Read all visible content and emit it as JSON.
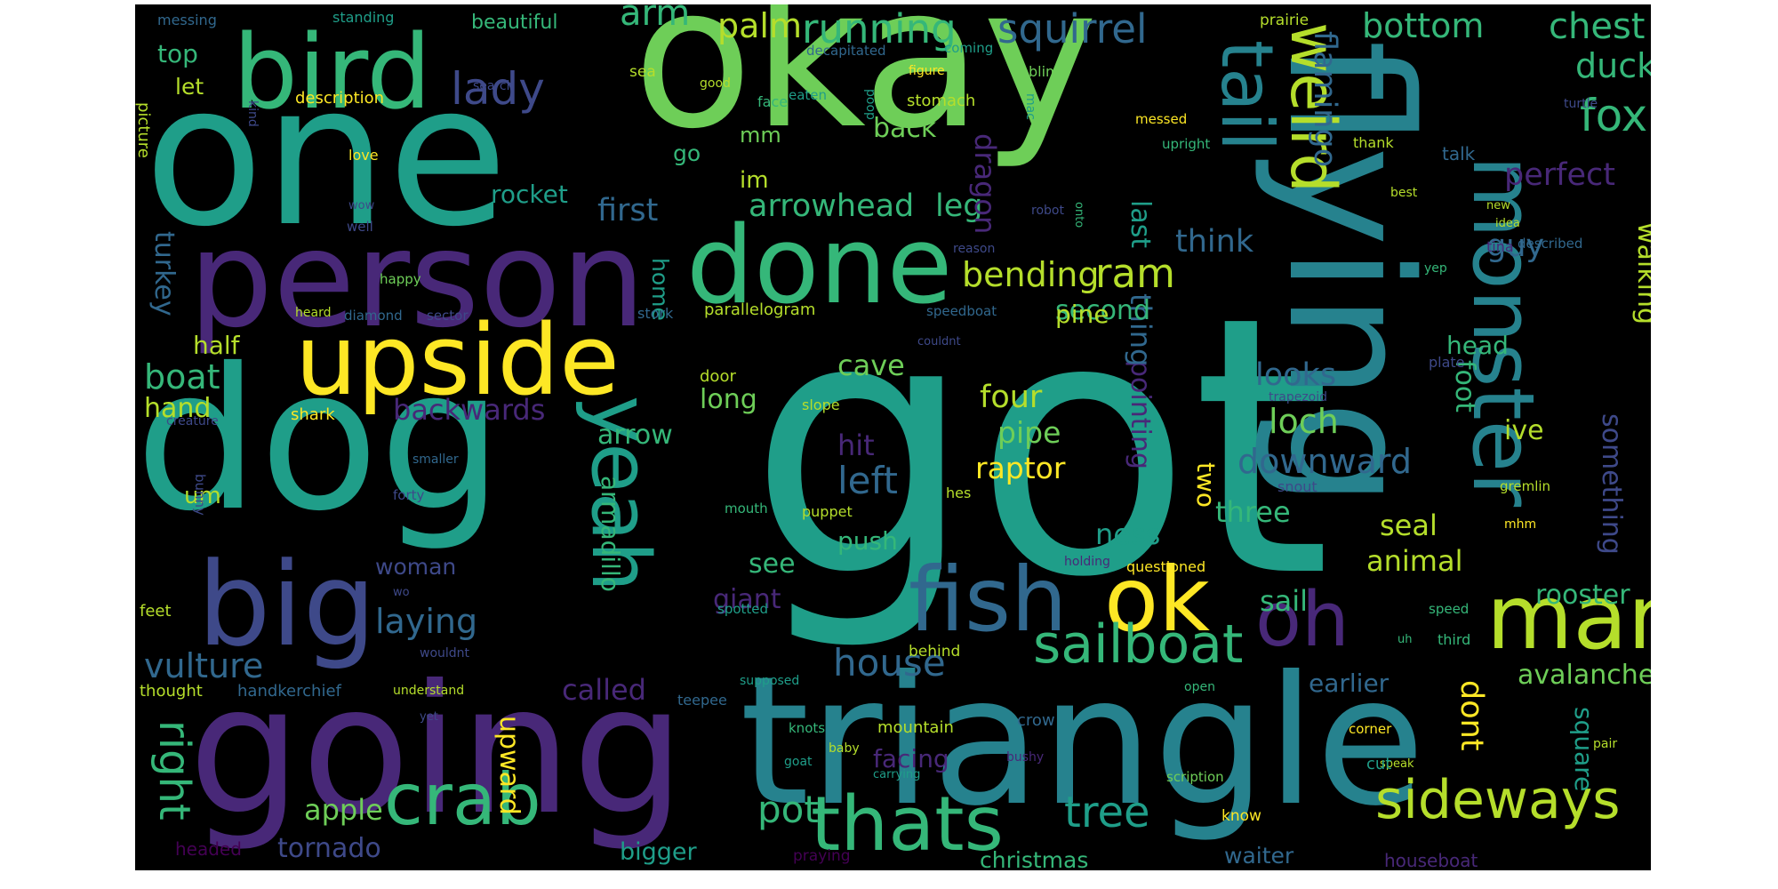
{
  "palette": {
    "yellow": "#fde725",
    "lime": "#b5de2b",
    "green": "#6ece58",
    "mint": "#35b779",
    "teal": "#1f9e89",
    "cyan": "#26828e",
    "blue": "#31688e",
    "indigo": "#3e4989",
    "purple": "#482878",
    "violet": "#440154"
  },
  "words": {
    "got": "got",
    "okay": "okay",
    "one": "one",
    "dog": "dog",
    "going": "going",
    "triangle": "triangle",
    "person": "person",
    "flying": "flying",
    "upside": "upside",
    "bird": "bird",
    "big": "big",
    "done": "done",
    "fish": "fish",
    "ok": "ok",
    "man": "man",
    "yeah": "yeah",
    "monster": "monster",
    "tail": "tail",
    "weird": "weird",
    "oh": "oh",
    "thats": "thats",
    "crab": "crab",
    "sailboat": "sailboat",
    "sideways": "sideways",
    "lady": "lady",
    "running": "running",
    "squirrel": "squirrel",
    "arm": "arm",
    "palm": "palm",
    "bottom": "bottom",
    "chest": "chest",
    "duck": "duck",
    "fox": "fox",
    "flamingo": "flamingo",
    "ram": "ram",
    "bending": "bending",
    "perfect": "perfect",
    "arrowhead": "arrowhead",
    "first": "first",
    "leg": "leg",
    "dragon": "dragon",
    "rocket": "rocket",
    "back": "back",
    "think": "think",
    "last": "last",
    "guy": "guy",
    "walking": "walking",
    "turkey": "turkey",
    "right": "right",
    "boat": "boat",
    "hand": "hand",
    "half": "half",
    "backwards": "backwards",
    "laying": "laying",
    "vulture": "vulture",
    "house": "house",
    "tree": "tree",
    "pot": "pot",
    "apple": "apple",
    "tornado": "tornado",
    "loch": "loch",
    "ness": "ness",
    "downward": "downward",
    "looks": "looks",
    "pointing": "pointing",
    "thing": "thing",
    "four": "four",
    "pipe": "pipe",
    "raptor": "raptor",
    "left": "left",
    "hit": "hit",
    "cave": "cave",
    "long": "long",
    "arrow": "arrow",
    "armadillo": "armadillo",
    "upward": "upward",
    "called": "called",
    "see": "see",
    "giant": "giant",
    "push": "push",
    "woman": "woman",
    "seal": "seal",
    "animal": "animal",
    "something": "something",
    "head": "head",
    "foot": "foot",
    "rooster": "rooster",
    "avalanche": "avalanche",
    "square": "square",
    "dont": "dont",
    "sail": "sail",
    "earlier": "earlier",
    "ive": "ive",
    "three": "three",
    "two": "two",
    "second": "second",
    "pine": "pine",
    "home": "home",
    "um": "um",
    "im": "im",
    "mm": "mm",
    "let": "let",
    "top": "top",
    "go": "go",
    "picture": "picture",
    "description": "description",
    "beautiful": "beautiful",
    "messing": "messing",
    "standing": "standing",
    "sea": "sea",
    "good": "good",
    "decapitated": "decapitated",
    "eaten": "eaten",
    "poop": "poop",
    "figure": "figure",
    "mac": "mac",
    "coming": "coming",
    "blimp": "blimp",
    "prairie": "prairie",
    "search": "search",
    "stomach": "stomach",
    "face": "face",
    "kind": "kind",
    "love": "love",
    "messed": "messed",
    "upright": "upright",
    "turtle": "turtle",
    "thank": "thank",
    "talk": "talk",
    "best": "best",
    "new": "new",
    "idea": "idea",
    "tina": "tina",
    "described": "described",
    "yep": "yep",
    "robot": "robot",
    "onto": "onto",
    "reason": "reason",
    "well": "well",
    "wow": "wow",
    "happy": "happy",
    "heard": "heard",
    "diamond": "diamond",
    "sector": "sector",
    "stork": "stork",
    "parallelogram": "parallelogram",
    "speedboat": "speedboat",
    "couldnt": "couldnt",
    "plate": "plate",
    "trapezoid": "trapezoid",
    "door": "door",
    "slope": "slope",
    "shark": "shark",
    "creature": "creature",
    "bunny": "bunny",
    "smaller": "smaller",
    "forty": "forty",
    "mouth": "mouth",
    "puppet": "puppet",
    "hes": "hes",
    "snout": "snout",
    "gremlin": "gremlin",
    "mhm": "mhm",
    "holding": "holding",
    "questioned": "questioned",
    "wo": "wo",
    "feet": "feet",
    "spotted": "spotted",
    "speed": "speed",
    "uh": "uh",
    "third": "third",
    "behind": "behind",
    "wouldnt": "wouldnt",
    "teepee": "teepee",
    "thought": "thought",
    "handkerchief": "handkerchief",
    "understand": "understand",
    "supposed": "supposed",
    "open": "open",
    "yet": "yet",
    "knots": "knots",
    "mountain": "mountain",
    "crow": "crow",
    "corner": "corner",
    "pair": "pair",
    "facing": "facing",
    "goat": "goat",
    "baby": "baby",
    "bushy": "bushy",
    "carrying": "carrying",
    "speak": "speak",
    "cut": "cut",
    "scription": "scription",
    "know": "know",
    "headed": "headed",
    "bigger": "bigger",
    "praying": "praying",
    "christmas": "christmas",
    "waiter": "waiter",
    "houseboat": "houseboat"
  }
}
